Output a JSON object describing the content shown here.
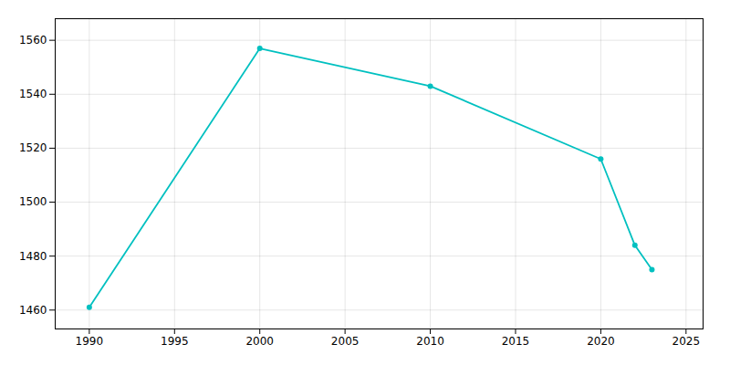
{
  "chart_data": {
    "type": "line",
    "x": [
      1990,
      2000,
      2010,
      2020,
      2022,
      2023
    ],
    "values": [
      1461,
      1557,
      1543,
      1516,
      1484,
      1475
    ],
    "color": "#00C0C0",
    "marker": "circle",
    "xlim": [
      1988,
      2026
    ],
    "ylim": [
      1453,
      1568
    ],
    "xticks": [
      1990,
      1995,
      2000,
      2005,
      2010,
      2015,
      2020,
      2025
    ],
    "yticks": [
      1460,
      1480,
      1500,
      1520,
      1540,
      1560
    ],
    "grid": true
  }
}
